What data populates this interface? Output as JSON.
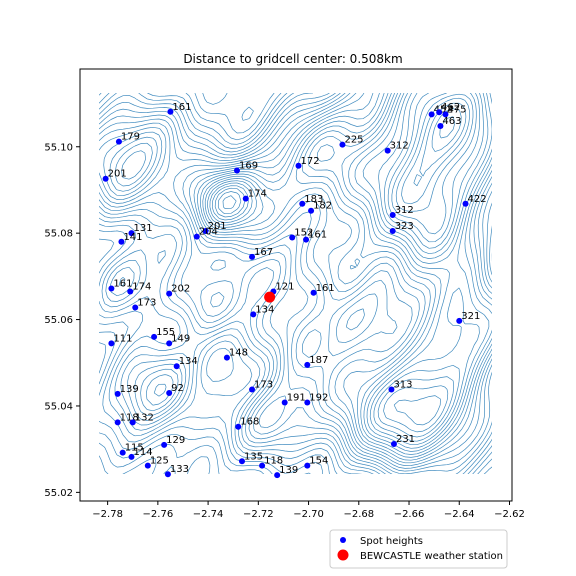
{
  "chart_data": {
    "type": "scatter",
    "title": "Distance to gridcell center: 0.508km",
    "xlabel": "",
    "ylabel": "",
    "xlim": [
      -2.791,
      -2.619
    ],
    "ylim": [
      55.018,
      55.118
    ],
    "xticks": [
      -2.78,
      -2.76,
      -2.74,
      -2.72,
      -2.7,
      -2.68,
      -2.66,
      -2.64,
      -2.62
    ],
    "xtick_labels": [
      "−2.78",
      "−2.76",
      "−2.74",
      "−2.72",
      "−2.70",
      "−2.68",
      "−2.66",
      "−2.64",
      "−2.62"
    ],
    "yticks": [
      55.02,
      55.04,
      55.06,
      55.08,
      55.1
    ],
    "ytick_labels": [
      "55.02",
      "55.04",
      "55.06",
      "55.08",
      "55.10"
    ],
    "grid": false,
    "legend_position": "below-right",
    "colors": {
      "spot": "#0000ff",
      "station": "#ff0000",
      "contour": "#1f77b4"
    },
    "series": [
      {
        "name": "Spot heights",
        "marker": "dot",
        "points": [
          {
            "x": -2.7755,
            "y": 55.1012,
            "label": "179"
          },
          {
            "x": -2.755,
            "y": 55.1081,
            "label": "161"
          },
          {
            "x": -2.7808,
            "y": 55.0926,
            "label": "201"
          },
          {
            "x": -2.7285,
            "y": 55.0945,
            "label": "169"
          },
          {
            "x": -2.704,
            "y": 55.0956,
            "label": "172"
          },
          {
            "x": -2.6865,
            "y": 55.1005,
            "label": "225"
          },
          {
            "x": -2.6685,
            "y": 55.0991,
            "label": "312"
          },
          {
            "x": -2.651,
            "y": 55.1075,
            "label": "452"
          },
          {
            "x": -2.648,
            "y": 55.108,
            "label": "462"
          },
          {
            "x": -2.6455,
            "y": 55.1075,
            "label": "475"
          },
          {
            "x": -2.6475,
            "y": 55.1048,
            "label": "463"
          },
          {
            "x": -2.725,
            "y": 55.088,
            "label": "174"
          },
          {
            "x": -2.7025,
            "y": 55.0868,
            "label": "183"
          },
          {
            "x": -2.699,
            "y": 55.0852,
            "label": "182"
          },
          {
            "x": -2.6665,
            "y": 55.0842,
            "label": "312"
          },
          {
            "x": -2.6375,
            "y": 55.0868,
            "label": "422"
          },
          {
            "x": -2.7705,
            "y": 55.08,
            "label": "131"
          },
          {
            "x": -2.7745,
            "y": 55.078,
            "label": "141"
          },
          {
            "x": -2.741,
            "y": 55.0805,
            "label": "201"
          },
          {
            "x": -2.7445,
            "y": 55.0792,
            "label": "204"
          },
          {
            "x": -2.6665,
            "y": 55.0805,
            "label": "323"
          },
          {
            "x": -2.7065,
            "y": 55.079,
            "label": "152"
          },
          {
            "x": -2.701,
            "y": 55.0785,
            "label": "161"
          },
          {
            "x": -2.7225,
            "y": 55.0745,
            "label": "167"
          },
          {
            "x": -2.7785,
            "y": 55.0672,
            "label": "161"
          },
          {
            "x": -2.771,
            "y": 55.0665,
            "label": "174"
          },
          {
            "x": -2.7555,
            "y": 55.066,
            "label": "202"
          },
          {
            "x": -2.714,
            "y": 55.0665,
            "label": "121"
          },
          {
            "x": -2.698,
            "y": 55.0662,
            "label": "161"
          },
          {
            "x": -2.769,
            "y": 55.0628,
            "label": "173"
          },
          {
            "x": -2.722,
            "y": 55.0612,
            "label": "134"
          },
          {
            "x": -2.64,
            "y": 55.0597,
            "label": "321"
          },
          {
            "x": -2.7615,
            "y": 55.056,
            "label": "155"
          },
          {
            "x": -2.7555,
            "y": 55.0545,
            "label": "149"
          },
          {
            "x": -2.7785,
            "y": 55.0545,
            "label": "111"
          },
          {
            "x": -2.7325,
            "y": 55.0512,
            "label": "148"
          },
          {
            "x": -2.7525,
            "y": 55.0492,
            "label": "134"
          },
          {
            "x": -2.7005,
            "y": 55.0495,
            "label": "187"
          },
          {
            "x": -2.776,
            "y": 55.0428,
            "label": "139"
          },
          {
            "x": -2.7555,
            "y": 55.043,
            "label": "92"
          },
          {
            "x": -2.7225,
            "y": 55.0438,
            "label": "173"
          },
          {
            "x": -2.667,
            "y": 55.0438,
            "label": "313"
          },
          {
            "x": -2.7095,
            "y": 55.0408,
            "label": "191"
          },
          {
            "x": -2.7005,
            "y": 55.0408,
            "label": "192"
          },
          {
            "x": -2.776,
            "y": 55.0362,
            "label": "118"
          },
          {
            "x": -2.77,
            "y": 55.0362,
            "label": "132"
          },
          {
            "x": -2.728,
            "y": 55.0352,
            "label": "168"
          },
          {
            "x": -2.7575,
            "y": 55.031,
            "label": "129"
          },
          {
            "x": -2.666,
            "y": 55.0312,
            "label": "231"
          },
          {
            "x": -2.774,
            "y": 55.0292,
            "label": "115"
          },
          {
            "x": -2.7705,
            "y": 55.0282,
            "label": "114"
          },
          {
            "x": -2.764,
            "y": 55.0262,
            "label": "125"
          },
          {
            "x": -2.7265,
            "y": 55.0272,
            "label": "135"
          },
          {
            "x": -2.7185,
            "y": 55.0262,
            "label": "118"
          },
          {
            "x": -2.7005,
            "y": 55.0262,
            "label": "154"
          },
          {
            "x": -2.7125,
            "y": 55.024,
            "label": "139"
          },
          {
            "x": -2.756,
            "y": 55.0242,
            "label": "133"
          }
        ]
      },
      {
        "name": "BEWCASTLE weather station",
        "marker": "big-dot",
        "points": [
          {
            "x": -2.7155,
            "y": 55.0652
          }
        ]
      }
    ]
  }
}
